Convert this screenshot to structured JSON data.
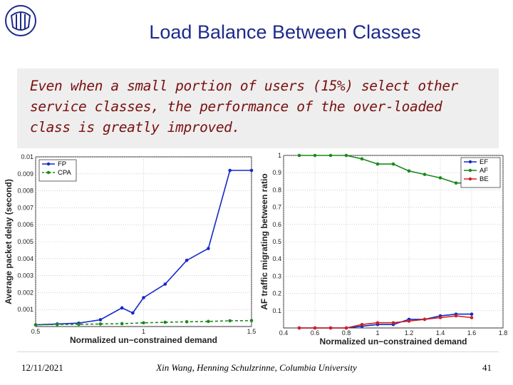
{
  "header": {
    "title": "Load Balance Between Classes"
  },
  "callout": {
    "text": "Even when a small portion of users (15%) select other\nservice classes, the performance of the over-loaded\nclass is greatly improved."
  },
  "footer": {
    "date": "12/11/2021",
    "author": "Xin Wang, Henning Schulzrinne, Columbia University",
    "page": "41"
  },
  "colors": {
    "title": "#1d2a8c",
    "callout_text": "#7a1010",
    "callout_bg": "#eeeeee",
    "series_blue": "#1428c8",
    "series_green": "#1a8a1a",
    "series_red": "#d02020"
  },
  "chart_data": [
    {
      "type": "line",
      "xlabel": "Normalized un-constrained demand",
      "ylabel": "Average packet delay (second)",
      "xlim": [
        0.5,
        1.5
      ],
      "ylim": [
        0,
        0.01
      ],
      "xticks": [
        0.5,
        1,
        1.5
      ],
      "yticks": [
        0.001,
        0.002,
        0.003,
        0.004,
        0.005,
        0.006,
        0.007,
        0.008,
        0.009,
        0.01
      ],
      "grid": true,
      "legend_position": "top-left",
      "series": [
        {
          "name": "FP",
          "color": "#1428c8",
          "style": "solid",
          "x": [
            0.5,
            0.6,
            0.7,
            0.8,
            0.9,
            0.95,
            1.0,
            1.1,
            1.2,
            1.3,
            1.4,
            1.5
          ],
          "y": [
            0.0001,
            0.00015,
            0.0002,
            0.0004,
            0.0011,
            0.0008,
            0.0017,
            0.0025,
            0.0039,
            0.0046,
            0.0092,
            0.0092
          ]
        },
        {
          "name": "CPA",
          "color": "#1a8a1a",
          "style": "dashed",
          "x": [
            0.5,
            0.6,
            0.7,
            0.8,
            0.9,
            1.0,
            1.1,
            1.2,
            1.3,
            1.4,
            1.5
          ],
          "y": [
            0.0001,
            0.00012,
            0.00013,
            0.00015,
            0.00017,
            0.00022,
            0.00025,
            0.00028,
            0.0003,
            0.00034,
            0.00035
          ]
        }
      ]
    },
    {
      "type": "line",
      "xlabel": "Normalized un-constrained demand",
      "ylabel": "AF traffic migrating between ratio",
      "xlim": [
        0.4,
        1.8
      ],
      "ylim": [
        0,
        1
      ],
      "xticks": [
        0.4,
        0.6,
        0.8,
        1,
        1.2,
        1.4,
        1.6,
        1.8
      ],
      "yticks": [
        0.1,
        0.2,
        0.3,
        0.4,
        0.5,
        0.6,
        0.7,
        0.8,
        0.9,
        1
      ],
      "grid": true,
      "legend_position": "top-right",
      "series": [
        {
          "name": "EF",
          "color": "#1428c8",
          "x": [
            0.5,
            0.6,
            0.7,
            0.8,
            0.9,
            1.0,
            1.1,
            1.2,
            1.3,
            1.4,
            1.5,
            1.6
          ],
          "y": [
            0.0,
            0.0,
            0.0,
            0.0,
            0.01,
            0.02,
            0.02,
            0.05,
            0.05,
            0.07,
            0.08,
            0.08
          ]
        },
        {
          "name": "AF",
          "color": "#1a8a1a",
          "x": [
            0.5,
            0.6,
            0.7,
            0.8,
            0.9,
            1.0,
            1.1,
            1.2,
            1.3,
            1.4,
            1.5,
            1.6
          ],
          "y": [
            1.0,
            1.0,
            1.0,
            1.0,
            0.98,
            0.95,
            0.95,
            0.91,
            0.89,
            0.87,
            0.84,
            0.84
          ]
        },
        {
          "name": "BE",
          "color": "#d02020",
          "x": [
            0.5,
            0.6,
            0.7,
            0.8,
            0.9,
            1.0,
            1.1,
            1.2,
            1.3,
            1.4,
            1.5,
            1.6
          ],
          "y": [
            0.0,
            0.0,
            0.0,
            0.0,
            0.02,
            0.03,
            0.03,
            0.04,
            0.05,
            0.06,
            0.07,
            0.06
          ]
        }
      ]
    }
  ]
}
